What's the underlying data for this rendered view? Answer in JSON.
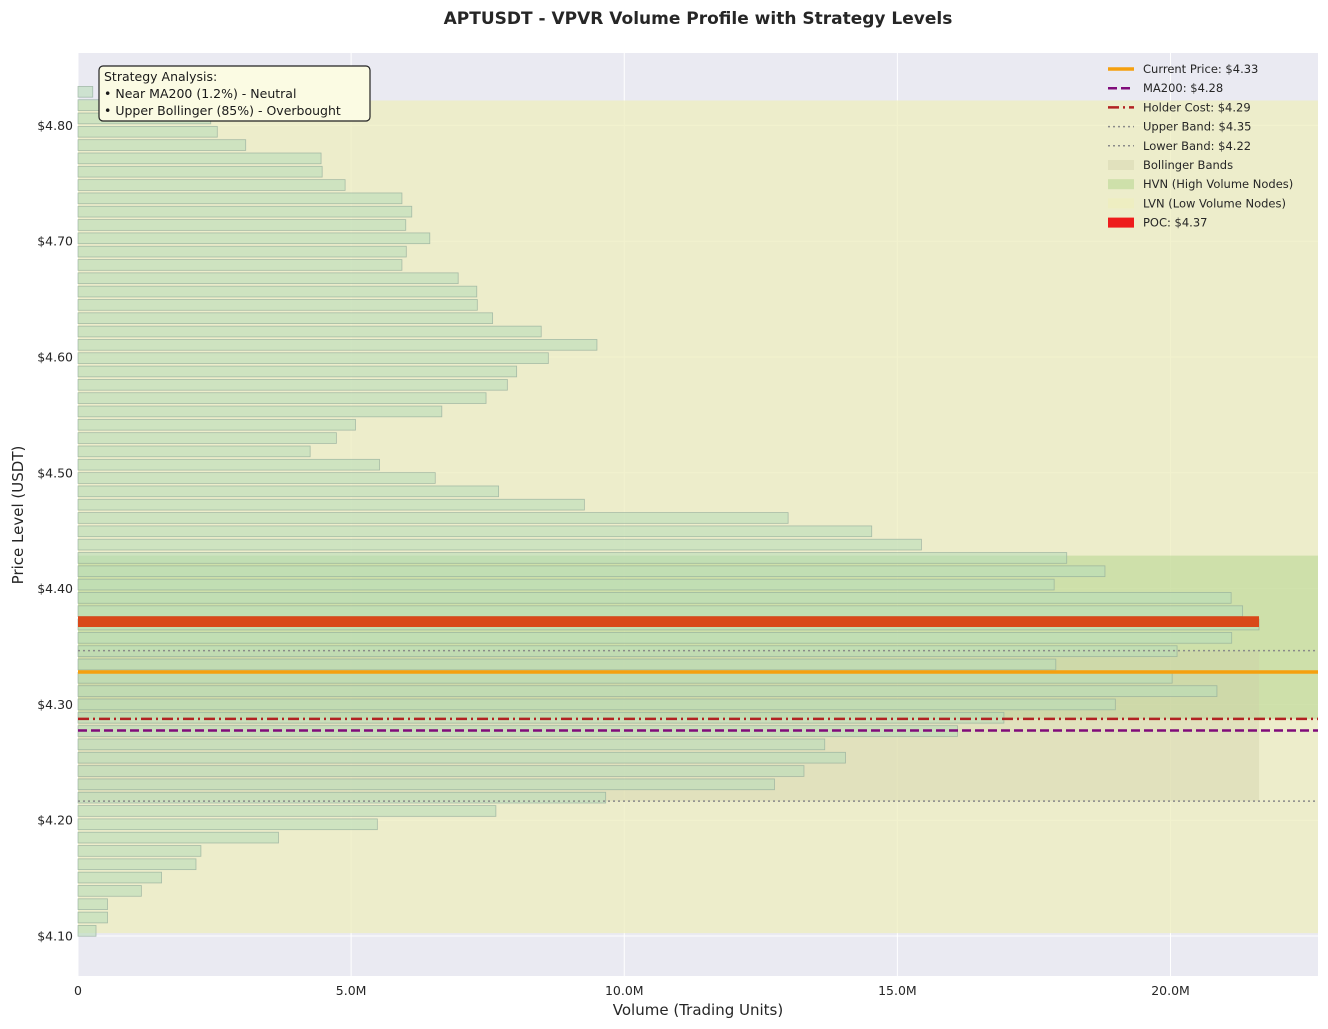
{
  "chart_data": {
    "type": "bar",
    "orientation": "horizontal",
    "title": "APTUSDT - VPVR Volume Profile with Strategy Levels",
    "xlabel": "Volume (Trading Units)",
    "ylabel": "Price Level (USDT)",
    "xlim": [
      0,
      22700000
    ],
    "ylim": [
      4.0655,
      4.8625
    ],
    "x_ticks": [
      0,
      5000000,
      10000000,
      15000000,
      20000000
    ],
    "x_tick_labels": [
      "0",
      "5.0M",
      "10.0M",
      "15.0M",
      "20.0M"
    ],
    "y_ticks": [
      4.1,
      4.2,
      4.3,
      4.4,
      4.5,
      4.6,
      4.7,
      4.8
    ],
    "y_tick_labels": [
      "$4.10",
      "$4.20",
      "$4.30",
      "$4.40",
      "$4.50",
      "$4.60",
      "$4.70",
      "$4.80"
    ],
    "grid": true,
    "legend_position": "top-right",
    "bin_height": 0.0093,
    "volume_profile": {
      "price": [
        4.1045,
        4.116,
        4.1275,
        4.139,
        4.1505,
        4.162,
        4.1735,
        4.185,
        4.1965,
        4.208,
        4.2195,
        4.231,
        4.2425,
        4.254,
        4.2655,
        4.277,
        4.2885,
        4.3,
        4.3115,
        4.323,
        4.3345,
        4.346,
        4.3575,
        4.369,
        4.3805,
        4.392,
        4.4035,
        4.415,
        4.4265,
        4.438,
        4.4495,
        4.461,
        4.4725,
        4.484,
        4.4955,
        4.507,
        4.5185,
        4.53,
        4.5415,
        4.553,
        4.5645,
        4.576,
        4.5875,
        4.599,
        4.6105,
        4.622,
        4.6335,
        4.645,
        4.6565,
        4.668,
        4.6795,
        4.691,
        4.7025,
        4.714,
        4.7255,
        4.737,
        4.7485,
        4.76,
        4.7715,
        4.783,
        4.7945,
        4.806,
        4.8175,
        4.829
      ],
      "volume": [
        330000,
        540000,
        540000,
        1160000,
        1530000,
        2160000,
        2250000,
        3670000,
        5480000,
        7650000,
        9660000,
        12750000,
        13290000,
        14050000,
        13670000,
        16100000,
        16950000,
        18990000,
        20850000,
        20030000,
        17900000,
        20120000,
        21120000,
        21620000,
        21320000,
        21110000,
        17870000,
        18800000,
        18100000,
        15440000,
        14530000,
        13000000,
        9270000,
        7700000,
        6540000,
        5520000,
        4250000,
        4730000,
        5080000,
        6660000,
        7470000,
        7860000,
        8030000,
        8610000,
        9500000,
        8480000,
        7590000,
        7310000,
        7300000,
        6960000,
        5930000,
        6010000,
        6440000,
        6000000,
        6110000,
        5930000,
        4890000,
        4470000,
        4450000,
        3070000,
        2550000,
        2430000,
        1690000,
        270000
      ]
    },
    "poc": {
      "label": "POC: $4.37",
      "price": 4.3715,
      "volume": 21620000,
      "color": "#d9481a"
    },
    "levels": [
      {
        "name": "Current Price: $4.33",
        "value": 4.328,
        "color": "#f5a00f",
        "style": "solid"
      },
      {
        "name": "MA200: $4.28",
        "value": 4.2775,
        "color": "#800c7a",
        "style": "dashed"
      },
      {
        "name": "Holder Cost: $4.29",
        "value": 4.2875,
        "color": "#b22222",
        "style": "dashdot"
      },
      {
        "name": "Upper Band: $4.35",
        "value": 4.3465,
        "color": "#8a8a8a",
        "style": "dotted"
      },
      {
        "name": "Lower Band: $4.22",
        "value": 4.2165,
        "color": "#8a8a8a",
        "style": "dotted"
      }
    ],
    "regions": [
      {
        "name": "Bollinger Bands",
        "y0": 4.2165,
        "y1": 4.3465,
        "x1": 21620000,
        "color": "#cfcfa8"
      },
      {
        "name": "HVN (High Volume Nodes)",
        "y0": 4.2875,
        "y1": 4.4285,
        "x1": 22700000,
        "color": "#b5d68f"
      },
      {
        "name": "LVN (Low Volume Nodes)",
        "y0": 4.1025,
        "y1": 4.8215,
        "x1": 22700000,
        "color": "#eeeebd"
      }
    ],
    "annotation": {
      "lines": [
        "Strategy Analysis:",
        "• Near MA200 (1.2%) - Neutral",
        "• Upper Bollinger (85%) - Overbought"
      ]
    },
    "legend": [
      "Current Price: $4.33",
      "MA200: $4.28",
      "Holder Cost: $4.29",
      "Upper Band: $4.35",
      "Lower Band: $4.22",
      "Bollinger Bands",
      "HVN (High Volume Nodes)",
      "LVN (Low Volume Nodes)",
      "POC: $4.37"
    ],
    "colors": {
      "plot_background": "#eaeaf2",
      "grid": "#ffffff",
      "bar_fill": "#b9dcb9",
      "bar_edge": "#8fa898",
      "annotation_fill": "#fbfbe3"
    }
  }
}
